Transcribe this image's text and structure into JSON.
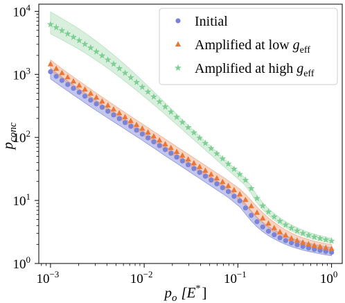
{
  "chart_data": {
    "type": "scatter",
    "xlabel": {
      "main": "p",
      "sub": "o",
      "unit": "[E",
      "unit_sup": "*",
      "unit_close": "]"
    },
    "ylabel": {
      "main": "p",
      "sub": "conc"
    },
    "xscale": "log",
    "yscale": "log",
    "xlim": [
      0.00075,
      1.3
    ],
    "ylim": [
      1,
      13000
    ],
    "grid": false,
    "legend_placement": "top-right",
    "x_ticks": [
      {
        "value": 0.001,
        "base": "10",
        "exp": "−3"
      },
      {
        "value": 0.01,
        "base": "10",
        "exp": "−2"
      },
      {
        "value": 0.1,
        "base": "10",
        "exp": "−1"
      },
      {
        "value": 1,
        "base": "10",
        "exp": "0"
      }
    ],
    "y_ticks": [
      {
        "value": 1,
        "base": "10",
        "exp": "0"
      },
      {
        "value": 10,
        "base": "10",
        "exp": "1"
      },
      {
        "value": 100,
        "base": "10",
        "exp": "2"
      },
      {
        "value": 1000,
        "base": "10",
        "exp": "3"
      },
      {
        "value": 10000,
        "base": "10",
        "exp": "4"
      }
    ],
    "x": [
      0.001,
      0.0011514,
      0.0013257,
      0.0015264,
      0.0017575,
      0.0020236,
      0.00233,
      0.0026827,
      0.0030888,
      0.0035565,
      0.0040949,
      0.0047149,
      0.0054287,
      0.0062506,
      0.0071969,
      0.0082864,
      0.009541,
      0.010985,
      0.012649,
      0.014564,
      0.016768,
      0.019307,
      0.02223,
      0.025595,
      0.029471,
      0.033932,
      0.039069,
      0.044984,
      0.051795,
      0.059636,
      0.068665,
      0.07906,
      0.09103,
      0.10481,
      0.12068,
      0.13895,
      0.15999,
      0.18421,
      0.2121,
      0.24421,
      0.28118,
      0.32375,
      0.37276,
      0.42919,
      0.49417,
      0.56899,
      0.65513,
      0.75431,
      0.86851,
      1.0
    ],
    "series": [
      {
        "name": "Initial",
        "marker": "circle",
        "color": "#7b83d6",
        "band_color": "#7b83d6",
        "values": [
          1100,
          930,
          800,
          690,
          600,
          520,
          450,
          390,
          340,
          300,
          260,
          227,
          198,
          172,
          150,
          130,
          113,
          98,
          85,
          74,
          64,
          56,
          48.6,
          42.3,
          36.8,
          32.0,
          27.8,
          24.2,
          21.0,
          18.3,
          15.9,
          13.8,
          11.6,
          9.8,
          7.6,
          5.8,
          4.6,
          3.8,
          3.25,
          2.85,
          2.55,
          2.3,
          2.12,
          1.98,
          1.86,
          1.76,
          1.68,
          1.61,
          1.55,
          1.5
        ],
        "band_low": [
          850,
          730,
          630,
          545,
          470,
          408,
          353,
          306,
          266,
          232,
          202,
          177,
          155,
          135,
          118,
          103,
          90,
          78,
          68,
          59,
          51,
          44.5,
          38.8,
          33.8,
          29.4,
          25.6,
          22.3,
          19.4,
          16.9,
          14.7,
          12.8,
          11.1,
          9.4,
          7.9,
          6.1,
          4.7,
          3.8,
          3.2,
          2.75,
          2.45,
          2.2,
          2.0,
          1.85,
          1.73,
          1.63,
          1.55,
          1.48,
          1.42,
          1.37,
          1.33
        ],
        "band_high": [
          1250,
          1060,
          910,
          785,
          680,
          590,
          510,
          442,
          385,
          335,
          292,
          255,
          222,
          194,
          169,
          147,
          128,
          111,
          96,
          83,
          72,
          63,
          54.5,
          47.3,
          41.2,
          35.8,
          31.1,
          27.1,
          23.5,
          20.5,
          17.8,
          15.5,
          13.1,
          11.1,
          8.8,
          6.8,
          5.4,
          4.5,
          3.85,
          3.4,
          3.05,
          2.75,
          2.53,
          2.36,
          2.22,
          2.1,
          2.0,
          1.92,
          1.85,
          1.79
        ]
      },
      {
        "name": "Amplified at low",
        "name_var": "g",
        "name_sub": "eff",
        "marker": "triangle",
        "color": "#ec7635",
        "band_color": "#f0a27a",
        "values": [
          1450,
          1230,
          1050,
          900,
          775,
          668,
          576,
          497,
          430,
          372,
          322,
          279,
          242,
          210,
          182,
          158,
          138,
          120,
          104,
          90,
          78,
          68,
          59,
          51.5,
          44.8,
          39.0,
          34.0,
          29.6,
          25.8,
          22.5,
          19.6,
          17.0,
          14.6,
          12.5,
          10.2,
          8.1,
          6.4,
          5.2,
          4.3,
          3.65,
          3.15,
          2.8,
          2.5,
          2.3,
          2.15,
          2.02,
          1.92,
          1.84,
          1.77,
          1.71
        ],
        "band_low": [
          1150,
          980,
          840,
          722,
          622,
          537,
          464,
          401,
          347,
          300,
          260,
          226,
          196,
          170,
          147,
          128,
          111,
          96.5,
          84,
          73,
          63.5,
          55,
          48,
          41.8,
          36.4,
          31.7,
          27.6,
          24.1,
          21.0,
          18.3,
          15.9,
          13.8,
          11.8,
          10.0,
          8.2,
          6.6,
          5.3,
          4.35,
          3.65,
          3.13,
          2.73,
          2.45,
          2.2,
          2.03,
          1.9,
          1.79,
          1.7,
          1.63,
          1.57,
          1.52
        ],
        "band_high": [
          1700,
          1440,
          1230,
          1055,
          908,
          783,
          675,
          583,
          504,
          437,
          379,
          329,
          286,
          249,
          216,
          188,
          164,
          143,
          124,
          108,
          94,
          82,
          71.5,
          62.3,
          54.3,
          47.3,
          41.2,
          35.9,
          31.3,
          27.2,
          23.7,
          20.6,
          17.7,
          15.2,
          12.5,
          10.0,
          7.9,
          6.4,
          5.3,
          4.5,
          3.88,
          3.42,
          3.05,
          2.77,
          2.56,
          2.4,
          2.26,
          2.16,
          2.07,
          2.0
        ]
      },
      {
        "name": "Amplified at high",
        "name_var": "g",
        "name_sub": "eff",
        "marker": "star",
        "color": "#7fcf95",
        "band_color": "#a8dcb4",
        "values": [
          6200,
          5550,
          4950,
          4400,
          3900,
          3450,
          3020,
          2640,
          2290,
          1980,
          1700,
          1460,
          1240,
          1050,
          890,
          750,
          630,
          528,
          442,
          368,
          306,
          254,
          210,
          174,
          144,
          119,
          98,
          81,
          67,
          55.5,
          46,
          38,
          31.5,
          26,
          21,
          15.5,
          10.8,
          8.2,
          6.6,
          5.5,
          4.7,
          4.1,
          3.65,
          3.3,
          3.02,
          2.8,
          2.63,
          2.5,
          2.38,
          2.28
        ],
        "band_low": [
          4400,
          3950,
          3540,
          3160,
          2810,
          2490,
          2190,
          1915,
          1665,
          1442,
          1242,
          1067,
          912,
          775,
          658,
          556,
          469,
          394,
          331,
          277,
          231,
          192,
          160,
          133,
          110,
          91.5,
          76,
          63,
          52.5,
          43.5,
          36.2,
          30,
          25,
          20.8,
          17,
          12.8,
          9.2,
          7.1,
          5.8,
          4.9,
          4.2,
          3.7,
          3.3,
          3.0,
          2.76,
          2.57,
          2.42,
          2.3,
          2.2,
          2.12
        ],
        "band_high": [
          9800,
          8700,
          7700,
          6800,
          6000,
          5250,
          4550,
          3920,
          3350,
          2860,
          2420,
          2040,
          1710,
          1420,
          1180,
          970,
          795,
          650,
          530,
          432,
          352,
          287,
          234,
          191,
          156,
          128,
          105,
          86,
          71,
          58.5,
          48.3,
          40,
          33,
          27.3,
          22.3,
          16.8,
          12.0,
          9.2,
          7.4,
          6.2,
          5.3,
          4.6,
          4.1,
          3.7,
          3.38,
          3.12,
          2.92,
          2.76,
          2.62,
          2.5
        ]
      }
    ]
  }
}
